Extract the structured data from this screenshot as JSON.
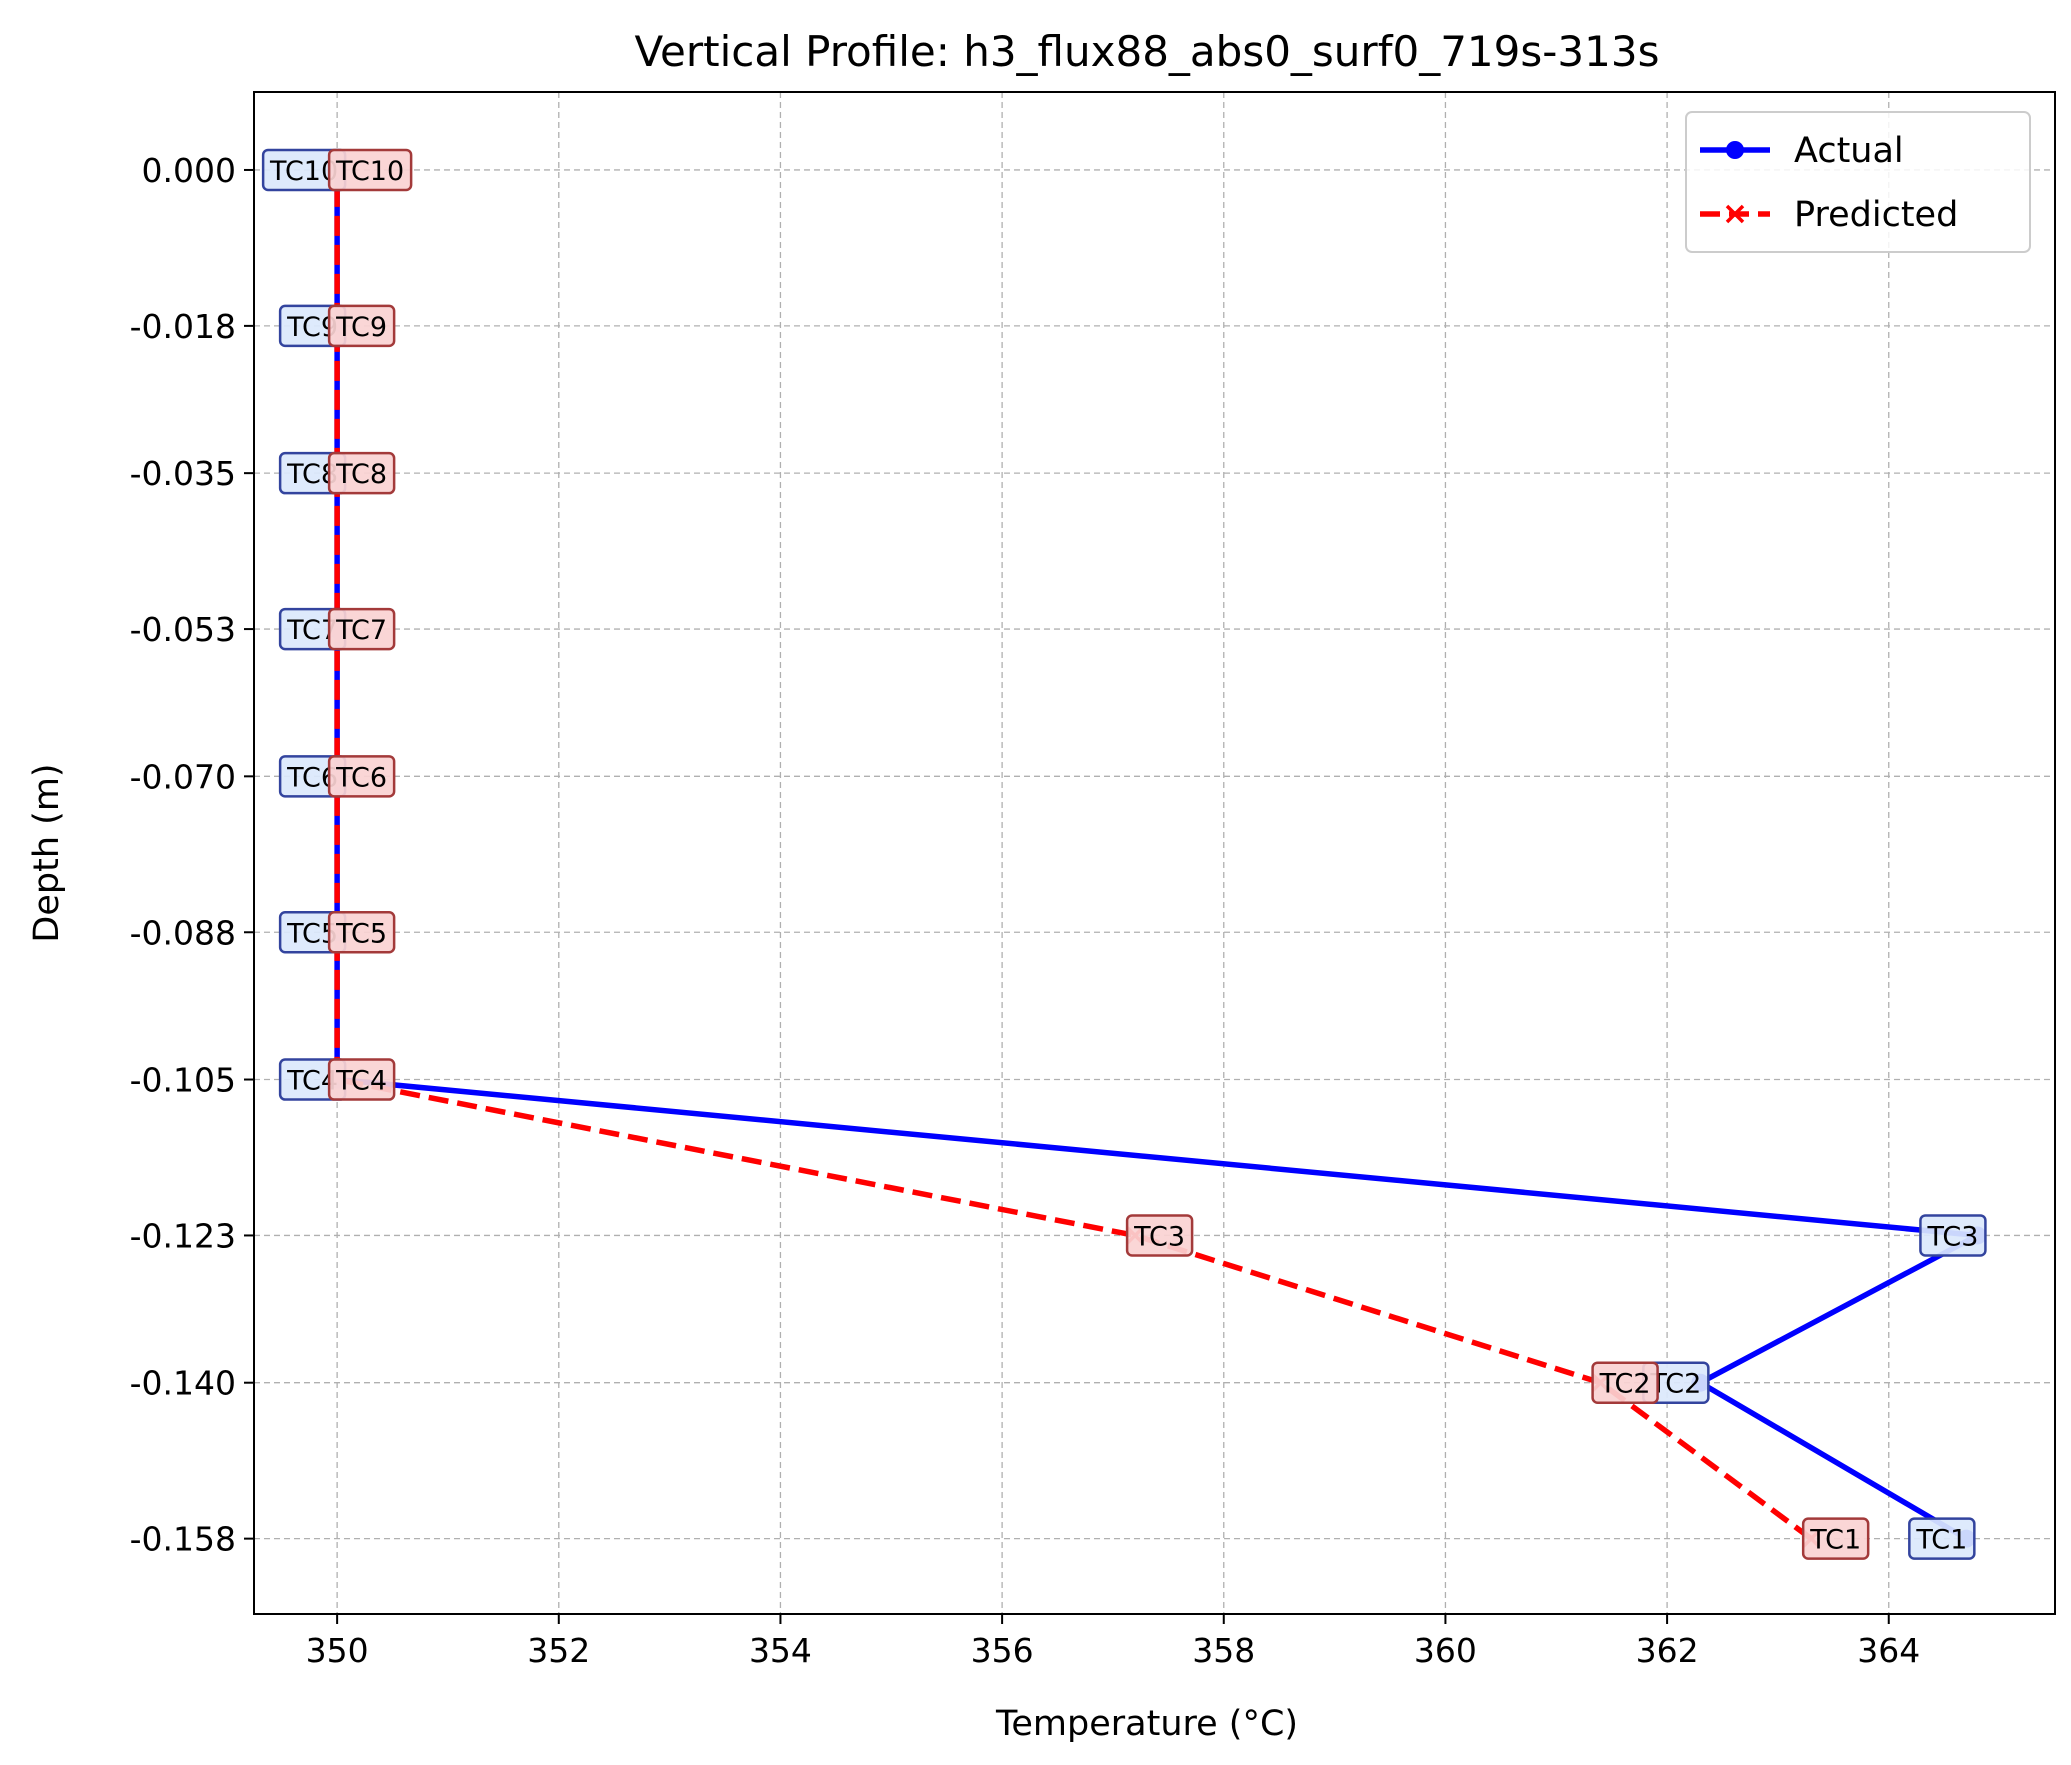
{
  "chart_data": {
    "type": "line",
    "title": "Vertical Profile: h3_flux88_abs0_surf0_719s-313s",
    "xlabel": "Temperature (°C)",
    "ylabel": "Depth (m)",
    "xlim": [
      349.25,
      365.5
    ],
    "ylim": [
      -0.1667,
      0.009
    ],
    "x_ticks": [
      350,
      352,
      354,
      356,
      358,
      360,
      362,
      364
    ],
    "y_ticks": [
      0.0,
      -0.018,
      -0.035,
      -0.053,
      -0.07,
      -0.088,
      -0.105,
      -0.123,
      -0.14,
      -0.158
    ],
    "x_tick_labels": [
      "350",
      "352",
      "354",
      "356",
      "358",
      "360",
      "362",
      "364"
    ],
    "y_tick_labels": [
      "0.000",
      "-0.018",
      "-0.035",
      "-0.053",
      "-0.070",
      "-0.088",
      "-0.105",
      "-0.123",
      "-0.140",
      "-0.158"
    ],
    "grid": true,
    "legend_position": "top-right",
    "depths": [
      -0.158,
      -0.14,
      -0.123,
      -0.105,
      -0.088,
      -0.07,
      -0.053,
      -0.035,
      -0.018,
      0.0
    ],
    "point_labels": [
      "TC1",
      "TC2",
      "TC3",
      "TC4",
      "TC5",
      "TC6",
      "TC7",
      "TC8",
      "TC9",
      "TC10"
    ],
    "series": [
      {
        "name": "Actual",
        "color": "#0000ff",
        "line_style": "solid",
        "marker": "circle",
        "values": [
          364.7,
          362.3,
          364.8,
          350.0,
          350.0,
          350.0,
          350.0,
          350.0,
          350.0,
          350.0
        ]
      },
      {
        "name": "Predicted",
        "color": "#ff0000",
        "line_style": "dashed",
        "marker": "x",
        "values": [
          363.3,
          361.4,
          357.2,
          350.0,
          350.0,
          350.0,
          350.0,
          350.0,
          350.0,
          350.0
        ]
      }
    ]
  }
}
